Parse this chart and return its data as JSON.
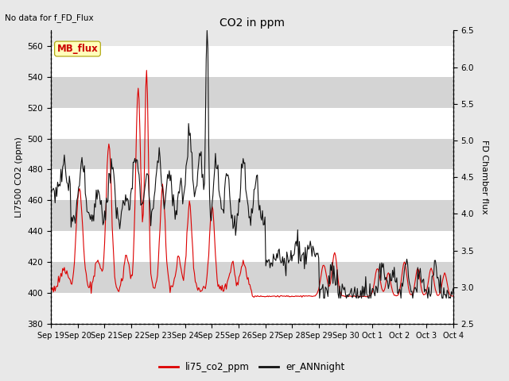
{
  "title": "CO2 in ppm",
  "ylabel_left": "LI7500 CO2 (ppm)",
  "ylabel_right": "FD Chamber flux",
  "top_left_text": "No data for f_FD_Flux",
  "legend_label1": "li75_co2_ppm",
  "legend_label2": "er_ANNnight",
  "legend_box_label": "MB_flux",
  "ylim_left": [
    380,
    570
  ],
  "ylim_right": [
    2.5,
    6.5
  ],
  "yticks_left": [
    380,
    400,
    420,
    440,
    460,
    480,
    500,
    520,
    540,
    560
  ],
  "yticks_right": [
    2.5,
    3.0,
    3.5,
    4.0,
    4.5,
    5.0,
    5.5,
    6.0,
    6.5
  ],
  "bg_color": "#e8e8e8",
  "plot_bg_color": "#e0e0e0",
  "band_color1": "#d8d8d8",
  "band_color2": "#ebebeb",
  "line1_color": "#dd0000",
  "line2_color": "#111111",
  "grid_color": "#ffffff",
  "n_points": 480
}
